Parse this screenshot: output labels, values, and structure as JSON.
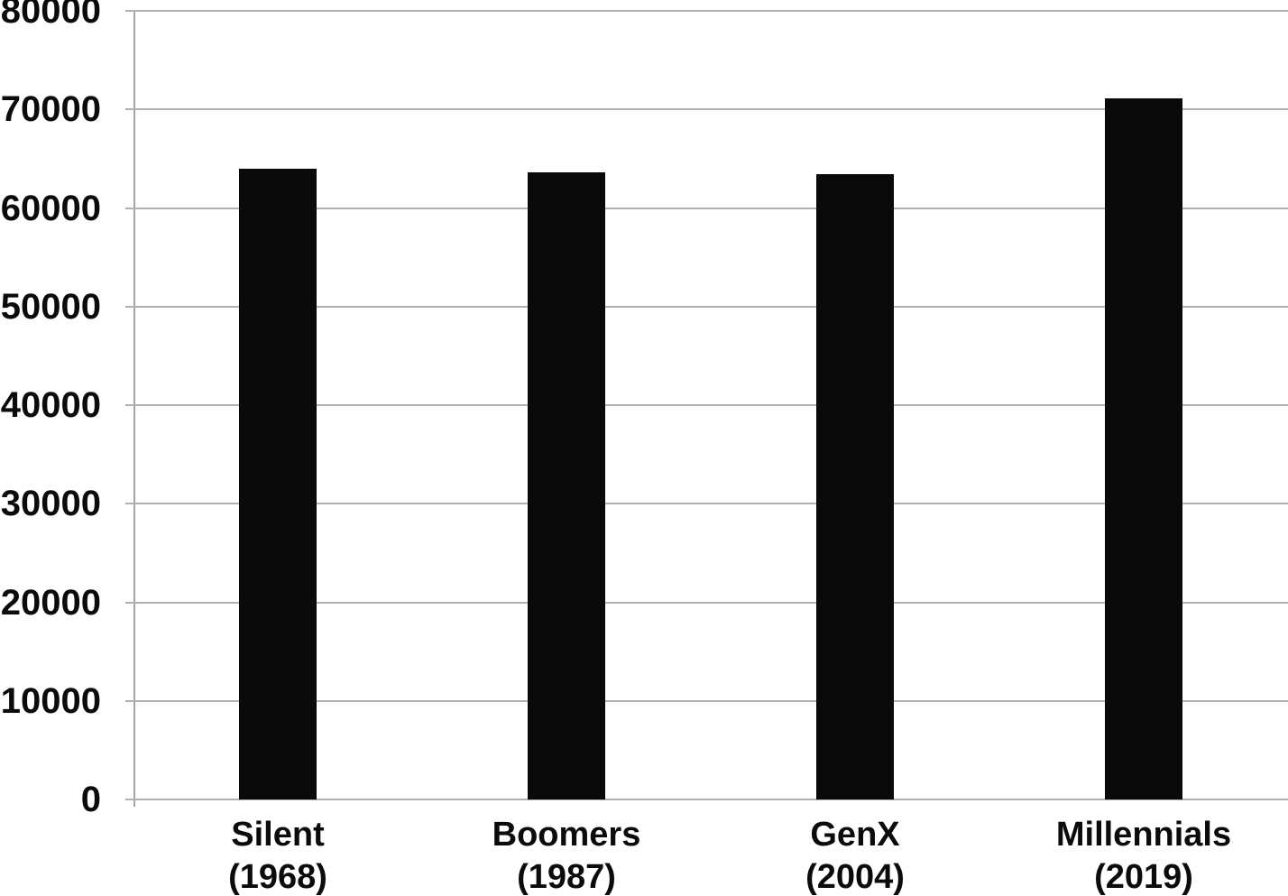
{
  "chart_data": {
    "type": "bar",
    "title": "",
    "xlabel": "",
    "ylabel": "",
    "categories": [
      {
        "name": "Silent",
        "year": "(1968)"
      },
      {
        "name": "Boomers",
        "year": "(1987)"
      },
      {
        "name": "GenX",
        "year": "(2004)"
      },
      {
        "name": "Millennials",
        "year": "(2019)"
      }
    ],
    "values": [
      64000,
      63600,
      63400,
      71100
    ],
    "ylim": [
      0,
      80000
    ],
    "ytick_step": 10000,
    "ytick_labels": [
      "0",
      "10000",
      "20000",
      "30000",
      "40000",
      "50000",
      "60000",
      "70000",
      "80000"
    ],
    "grid": true,
    "legend": null,
    "colors": {
      "bar": "#0a0a0a",
      "gridline": "#b0b0b0",
      "axis": "#a5a5a5",
      "text": "#0b0b0b",
      "background": "#ffffff"
    }
  }
}
